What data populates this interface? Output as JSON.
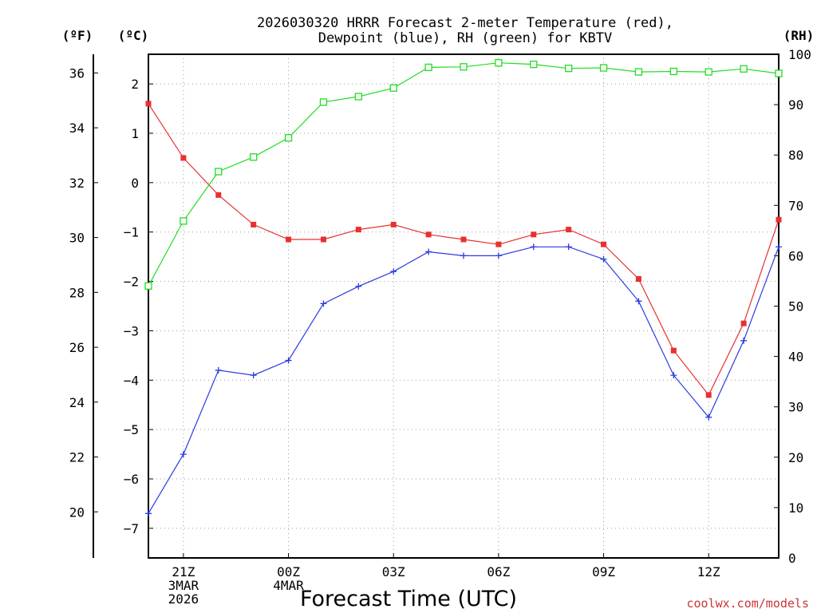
{
  "chart_data": {
    "type": "line",
    "title": [
      "2026030320 HRRR Forecast 2-meter Temperature (red),",
      "Dewpoint (blue), RH (green) for KBTV"
    ],
    "xlabel": "Forecast Time (UTC)",
    "credit": "coolwx.com/models",
    "units": {
      "fahrenheit": "(ºF)",
      "celsius": "(ºC)",
      "rh": "(RH)"
    },
    "x_hours": [
      0,
      1,
      2,
      3,
      4,
      5,
      6,
      7,
      8,
      9,
      10,
      11,
      12,
      13,
      14,
      15,
      16,
      17,
      18
    ],
    "x_ticks": [
      {
        "hour": 1,
        "lines": [
          "21Z",
          "3MAR",
          "2026"
        ]
      },
      {
        "hour": 4,
        "lines": [
          "00Z",
          "4MAR"
        ]
      },
      {
        "hour": 7,
        "lines": [
          "03Z"
        ]
      },
      {
        "hour": 10,
        "lines": [
          "06Z"
        ]
      },
      {
        "hour": 13,
        "lines": [
          "09Z"
        ]
      },
      {
        "hour": 16,
        "lines": [
          "12Z"
        ]
      }
    ],
    "xlim": [
      0,
      18
    ],
    "celsius_axis": {
      "ylim": [
        -7.6,
        2.6
      ],
      "ticks": [
        2,
        1,
        0,
        -1,
        -2,
        -3,
        -4,
        -5,
        -6,
        -7
      ]
    },
    "fahrenheit_axis": {
      "ticks": [
        36,
        34,
        32,
        30,
        28,
        26,
        24,
        22,
        20
      ]
    },
    "rh_axis": {
      "ylim": [
        0,
        100
      ],
      "ticks": [
        100,
        90,
        80,
        70,
        60,
        50,
        40,
        30,
        20,
        10,
        0
      ]
    },
    "grid": true,
    "series": [
      {
        "name": "Temperature",
        "axis": "celsius",
        "color": "#e83030",
        "marker": "filled-square",
        "values": [
          1.6,
          0.5,
          -0.25,
          -0.85,
          -1.15,
          -1.15,
          -0.95,
          -0.85,
          -1.05,
          -1.15,
          -1.25,
          -1.05,
          -0.95,
          -1.25,
          -1.95,
          -3.4,
          -4.3,
          -2.85,
          -0.75
        ]
      },
      {
        "name": "Dewpoint",
        "axis": "celsius",
        "color": "#2a3ae0",
        "marker": "plus",
        "values": [
          -6.7,
          -5.5,
          -3.8,
          -3.9,
          -3.6,
          -2.45,
          -2.1,
          -1.8,
          -1.4,
          -1.48,
          -1.48,
          -1.3,
          -1.3,
          -1.55,
          -2.4,
          -3.9,
          -4.75,
          -3.2,
          -1.3
        ]
      },
      {
        "name": "RH",
        "axis": "rh",
        "color": "#22dd22",
        "marker": "open-square",
        "values": [
          54.0,
          66.9,
          76.7,
          79.6,
          83.4,
          90.5,
          91.6,
          93.3,
          97.4,
          97.5,
          98.3,
          98.0,
          97.2,
          97.3,
          96.5,
          96.6,
          96.5,
          97.1,
          96.2
        ]
      }
    ]
  }
}
